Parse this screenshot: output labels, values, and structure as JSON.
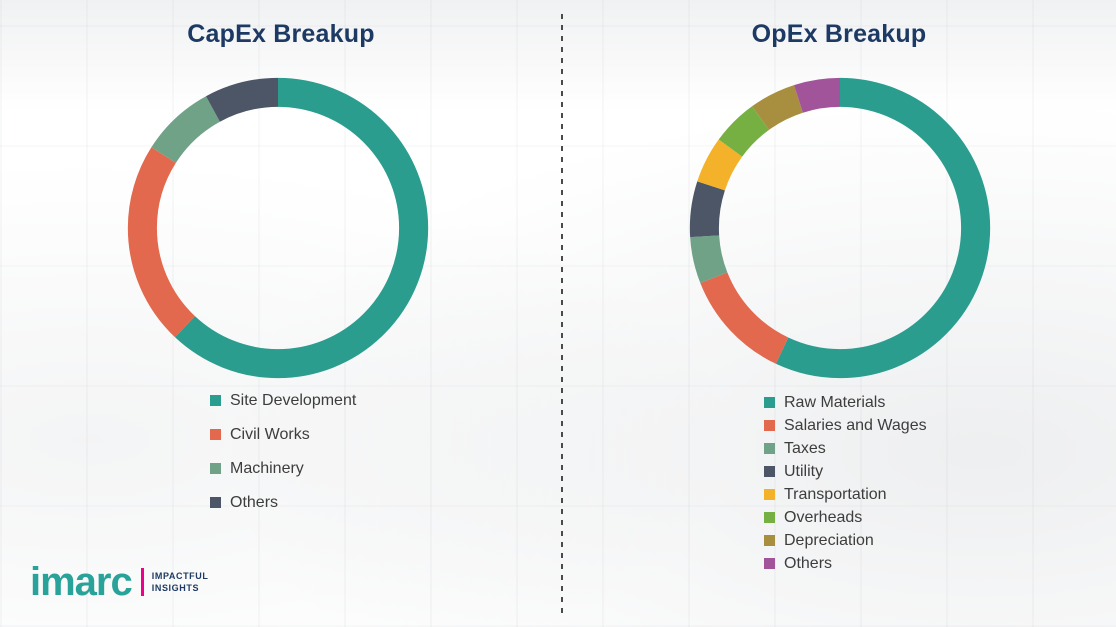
{
  "theme": {
    "title_color": "#1C3A63",
    "legend_text_color": "#3D3D3D",
    "divider_color": "#4A4A4A",
    "logo_teal": "#29A39A",
    "logo_magenta": "#EC008C",
    "background_color": "#FFFFFF"
  },
  "logo": {
    "brand": "imarc",
    "tagline_line1": "IMPACTFUL",
    "tagline_line2": "INSIGHTS"
  },
  "chart_data": [
    {
      "type": "pie",
      "subtype": "donut",
      "title": "CapEx Breakup",
      "legend_position": "bottom",
      "categories": [
        "Site Development",
        "Civil Works",
        "Machinery",
        "Others"
      ],
      "values": [
        62,
        22,
        8,
        8
      ],
      "values_note": "percent, estimated from arc lengths (no data labels shown)",
      "colors": [
        "#2A9D8F",
        "#E2694D",
        "#6FA287",
        "#4C5667"
      ]
    },
    {
      "type": "pie",
      "subtype": "donut",
      "title": "OpEx Breakup",
      "legend_position": "bottom",
      "categories": [
        "Raw Materials",
        "Salaries and Wages",
        "Taxes",
        "Utility",
        "Transportation",
        "Overheads",
        "Depreciation",
        "Others"
      ],
      "values": [
        57,
        12,
        5,
        6,
        5,
        5,
        5,
        5
      ],
      "values_note": "percent, estimated from arc lengths (no data labels shown)",
      "colors": [
        "#2A9D8F",
        "#E2694D",
        "#6FA287",
        "#4C5667",
        "#F3B229",
        "#76B043",
        "#A78F3F",
        "#A2549B"
      ]
    }
  ]
}
